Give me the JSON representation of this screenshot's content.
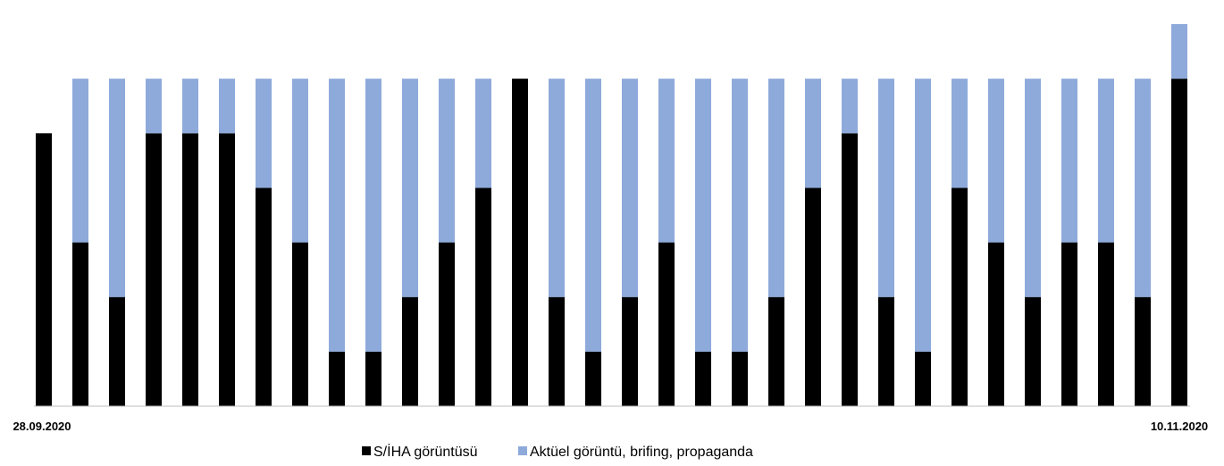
{
  "chart_data": {
    "type": "bar",
    "stacked": true,
    "x_tick_labels": [
      "28.09.2020",
      "10.11.2020"
    ],
    "series": [
      {
        "name": "S/İHA görüntüsü",
        "color": "#000000",
        "values": [
          5,
          3,
          2,
          5,
          5,
          5,
          4,
          3,
          1,
          1,
          2,
          3,
          4,
          6,
          2,
          1,
          2,
          3,
          1,
          1,
          2,
          4,
          5,
          2,
          1,
          4,
          3,
          2,
          3,
          3,
          2,
          6
        ]
      },
      {
        "name": "Aktüel görüntü, brifing, propaganda",
        "color": "#8eaadb",
        "values": [
          0,
          3,
          4,
          1,
          1,
          1,
          2,
          3,
          5,
          5,
          4,
          3,
          2,
          0,
          4,
          5,
          4,
          3,
          5,
          5,
          4,
          2,
          1,
          4,
          5,
          2,
          3,
          4,
          3,
          3,
          4,
          1
        ]
      }
    ],
    "ylim": [
      0,
      7
    ],
    "grid": false,
    "legend_position": "bottom"
  }
}
